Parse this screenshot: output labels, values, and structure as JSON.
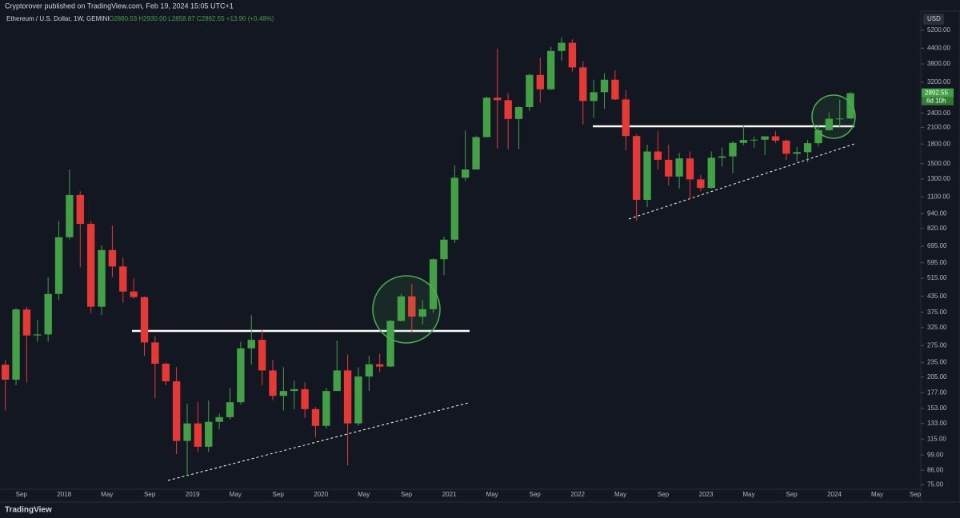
{
  "publisher": "Cryptorover published on TradingView.com, Feb 19, 2024 15:05 UTC+1",
  "footer": "TradingView",
  "chart_data": {
    "type": "candlestick",
    "title": "Ethereum / U.S. Dollar, 1W, GEMINI",
    "ohlc_legend": "O2880.03 H2930.00 L2858.87 C2892.55 +13.90 (+0.48%)",
    "currency": "USD",
    "last_price": 2892.55,
    "countdown": "6d 10h",
    "up_color": "#43a047",
    "down_color": "#e53935",
    "log_scale": true,
    "grid": false,
    "xlim": [
      "2017-07",
      "2024-09"
    ],
    "ylim": [
      72,
      6900
    ],
    "yticks": [
      {
        "value": 5200,
        "label": "5200.00"
      },
      {
        "value": 4400,
        "label": "4400.00"
      },
      {
        "value": 3800,
        "label": "3800.00"
      },
      {
        "value": 3200,
        "label": "3200.00"
      },
      {
        "value": 2400,
        "label": "2400.00"
      },
      {
        "value": 2100,
        "label": "2100.00"
      },
      {
        "value": 1800,
        "label": "1800.00"
      },
      {
        "value": 1500,
        "label": "1500.00"
      },
      {
        "value": 1300,
        "label": "1300.00"
      },
      {
        "value": 1100,
        "label": "1100.00"
      },
      {
        "value": 940,
        "label": "940.00"
      },
      {
        "value": 820,
        "label": "820.00"
      },
      {
        "value": 695,
        "label": "695.00"
      },
      {
        "value": 595,
        "label": "595.00"
      },
      {
        "value": 515,
        "label": "515.00"
      },
      {
        "value": 435,
        "label": "435.00"
      },
      {
        "value": 375,
        "label": "375.00"
      },
      {
        "value": 325,
        "label": "325.00"
      },
      {
        "value": 275,
        "label": "275.00"
      },
      {
        "value": 235,
        "label": "235.00"
      },
      {
        "value": 205,
        "label": "205.00"
      },
      {
        "value": 177,
        "label": "177.00"
      },
      {
        "value": 153,
        "label": "153.00"
      },
      {
        "value": 133,
        "label": "133.00"
      },
      {
        "value": 115,
        "label": "115.00"
      },
      {
        "value": 99,
        "label": "99.00"
      },
      {
        "value": 86,
        "label": "86.00"
      },
      {
        "value": 75,
        "label": "75.00"
      }
    ],
    "xticks": [
      {
        "value": "2017-09",
        "label": "Sep"
      },
      {
        "value": "2018-01",
        "label": "2018"
      },
      {
        "value": "2018-05",
        "label": "May"
      },
      {
        "value": "2018-09",
        "label": "Sep"
      },
      {
        "value": "2019-01",
        "label": "2019"
      },
      {
        "value": "2019-05",
        "label": "May"
      },
      {
        "value": "2019-09",
        "label": "Sep"
      },
      {
        "value": "2020-01",
        "label": "2020"
      },
      {
        "value": "2020-05",
        "label": "May"
      },
      {
        "value": "2020-09",
        "label": "Sep"
      },
      {
        "value": "2021-01",
        "label": "2021"
      },
      {
        "value": "2021-05",
        "label": "May"
      },
      {
        "value": "2021-09",
        "label": "Sep"
      },
      {
        "value": "2022-01",
        "label": "2022"
      },
      {
        "value": "2022-05",
        "label": "May"
      },
      {
        "value": "2022-09",
        "label": "Sep"
      },
      {
        "value": "2023-01",
        "label": "2023"
      },
      {
        "value": "2023-05",
        "label": "May"
      },
      {
        "value": "2023-09",
        "label": "Sep"
      },
      {
        "value": "2024-01",
        "label": "2024"
      },
      {
        "value": "2024-05",
        "label": "May"
      },
      {
        "value": "2024-09",
        "label": "Sep"
      }
    ],
    "x": [
      "2017-07",
      "2017-08",
      "2017-09",
      "2017-10",
      "2017-11",
      "2017-12",
      "2018-01",
      "2018-02",
      "2018-03",
      "2018-04",
      "2018-05",
      "2018-06",
      "2018-07",
      "2018-08",
      "2018-09",
      "2018-10",
      "2018-11",
      "2018-12",
      "2019-01",
      "2019-02",
      "2019-03",
      "2019-04",
      "2019-05",
      "2019-06",
      "2019-07",
      "2019-08",
      "2019-09",
      "2019-10",
      "2019-11",
      "2019-12",
      "2020-01",
      "2020-02",
      "2020-03",
      "2020-04",
      "2020-05",
      "2020-06",
      "2020-07",
      "2020-08",
      "2020-09",
      "2020-10",
      "2020-11",
      "2020-12",
      "2021-01",
      "2021-02",
      "2021-03",
      "2021-04",
      "2021-05",
      "2021-06",
      "2021-07",
      "2021-08",
      "2021-09",
      "2021-10",
      "2021-11",
      "2021-12",
      "2022-01",
      "2022-02",
      "2022-03",
      "2022-04",
      "2022-05",
      "2022-06",
      "2022-07",
      "2022-08",
      "2022-09",
      "2022-10",
      "2022-11",
      "2022-12",
      "2023-01",
      "2023-02",
      "2023-03",
      "2023-04",
      "2023-05",
      "2023-06",
      "2023-07",
      "2023-08",
      "2023-09",
      "2023-10",
      "2023-11",
      "2023-12",
      "2024-01",
      "2024-02"
    ],
    "open": [
      230,
      200,
      385,
      302,
      305,
      445,
      755,
      1120,
      855,
      395,
      670,
      575,
      455,
      432,
      283,
      232,
      197,
      113,
      133,
      107,
      135,
      141,
      162,
      268,
      290,
      218,
      172,
      180,
      183,
      152,
      130,
      180,
      218,
      133,
      206,
      231,
      226,
      346,
      435,
      360,
      386,
      615,
      738,
      1315,
      1420,
      1920,
      2775,
      2710,
      2275,
      2540,
      3430,
      3000,
      4290,
      4630,
      3680,
      2690,
      2920,
      3280,
      2730,
      1940,
      1070,
      1680,
      1555,
      1330,
      1575,
      1295,
      1195,
      1585,
      1605,
      1820,
      1870,
      1875,
      1935,
      1860,
      1645,
      1670,
      1815,
      2050,
      2280,
      2285
    ],
    "high": [
      240,
      390,
      395,
      350,
      520,
      880,
      1420,
      1160,
      880,
      700,
      840,
      625,
      515,
      435,
      300,
      235,
      225,
      160,
      162,
      165,
      146,
      185,
      285,
      365,
      318,
      240,
      225,
      198,
      195,
      155,
      185,
      288,
      253,
      225,
      250,
      255,
      350,
      445,
      488,
      420,
      620,
      760,
      1475,
      2040,
      1945,
      2800,
      4380,
      2890,
      2560,
      3470,
      4030,
      4460,
      4870,
      4780,
      3900,
      3280,
      3480,
      3580,
      2970,
      1975,
      1790,
      2030,
      1790,
      1660,
      1680,
      1350,
      1680,
      1745,
      1850,
      2140,
      1930,
      1930,
      2030,
      1880,
      1755,
      1870,
      2140,
      2420,
      2720,
      2930
    ],
    "low": [
      150,
      190,
      195,
      285,
      285,
      420,
      740,
      570,
      370,
      365,
      520,
      410,
      425,
      250,
      168,
      190,
      100,
      81,
      102,
      102,
      126,
      138,
      159,
      230,
      190,
      165,
      150,
      152,
      140,
      117,
      127,
      180,
      90,
      130,
      180,
      215,
      225,
      345,
      310,
      335,
      373,
      530,
      715,
      1275,
      1430,
      1920,
      1730,
      1710,
      1720,
      2450,
      2650,
      2980,
      3920,
      3530,
      2160,
      2300,
      2500,
      2710,
      1700,
      880,
      1000,
      1420,
      1220,
      1190,
      1075,
      1160,
      1190,
      1460,
      1370,
      1780,
      1740,
      1625,
      1820,
      1550,
      1530,
      1520,
      1760,
      2040,
      2100,
      2270
    ],
    "close": [
      200,
      385,
      302,
      305,
      445,
      755,
      1120,
      855,
      395,
      670,
      575,
      455,
      432,
      283,
      232,
      197,
      113,
      133,
      107,
      135,
      141,
      162,
      268,
      290,
      218,
      172,
      180,
      183,
      152,
      130,
      180,
      218,
      133,
      206,
      231,
      226,
      346,
      435,
      360,
      386,
      615,
      738,
      1315,
      1420,
      1920,
      2775,
      2710,
      2275,
      2540,
      3430,
      3000,
      4290,
      4630,
      3680,
      2690,
      2920,
      3280,
      2730,
      1940,
      1070,
      1680,
      1555,
      1330,
      1575,
      1295,
      1195,
      1585,
      1605,
      1820,
      1870,
      1875,
      1935,
      1860,
      1645,
      1670,
      1815,
      2050,
      2280,
      2285,
      2892.55
    ]
  }
}
